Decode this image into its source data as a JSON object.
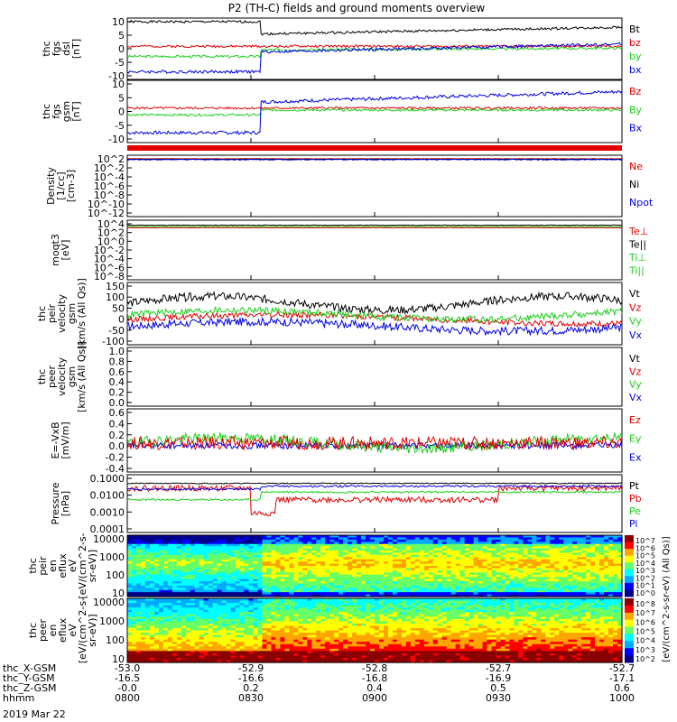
{
  "title": "P2 (TH-C) fields and ground moments overview",
  "date_label": "2019 Mar 22",
  "colors": {
    "black": "#000000",
    "red": "#e00000",
    "green": "#19d019",
    "blue": "#0000e0",
    "axis": "#000000"
  },
  "chart_data": [
    {
      "type": "line",
      "name": "fgs_dsl",
      "ylabel": [
        "thc",
        "fgs",
        "dsl",
        "[nT]"
      ],
      "yticks": [
        "10",
        "5",
        "0",
        "-5",
        "-10"
      ],
      "ylim": [
        -10,
        10
      ],
      "legend": [
        {
          "label": "Bt",
          "color": "black"
        },
        {
          "label": "bz",
          "color": "red"
        },
        {
          "label": "by",
          "color": "green"
        },
        {
          "label": "bx",
          "color": "blue"
        }
      ]
    },
    {
      "type": "line",
      "name": "fgs_gsm",
      "ylabel": [
        "thc",
        "fgs",
        "gsm",
        "[nT]"
      ],
      "yticks": [
        "10",
        "5",
        "0",
        "-5",
        "-10"
      ],
      "ylim": [
        -12,
        10
      ],
      "legend": [
        {
          "label": "Bz",
          "color": "red"
        },
        {
          "label": "By",
          "color": "green"
        },
        {
          "label": "Bx",
          "color": "blue"
        }
      ]
    },
    {
      "type": "line",
      "name": "density",
      "ylabel": [
        "Density",
        "[1/cc]",
        "[cm-3]"
      ],
      "yticks": [
        "10^2",
        "10^-2",
        "10^-4",
        "10^-6",
        "10^-8",
        "10^-10",
        "10^-12"
      ],
      "ylim": [
        -12,
        2
      ],
      "yscale": "log",
      "legend": [
        {
          "label": "Ne",
          "color": "red"
        },
        {
          "label": "Ni",
          "color": "black"
        },
        {
          "label": "Npot",
          "color": "blue"
        }
      ]
    },
    {
      "type": "line",
      "name": "temperature",
      "ylabel": [
        "moqt3",
        "[eV]"
      ],
      "yticks": [
        "10^4",
        "10^2",
        "10^0",
        "10^-2",
        "10^-4",
        "10^-6",
        "10^-8"
      ],
      "ylim": [
        -8,
        4
      ],
      "yscale": "log",
      "legend": [
        {
          "label": "Te⊥",
          "color": "red"
        },
        {
          "label": "Te||",
          "color": "black"
        },
        {
          "label": "Ti⊥",
          "color": "green"
        },
        {
          "label": "Ti||",
          "color": "green"
        }
      ]
    },
    {
      "type": "line",
      "name": "peir_velocity",
      "ylabel": [
        "thc",
        "peir",
        "velocity",
        "gsm",
        "[km/s (All Qs)]"
      ],
      "yticks": [
        "150",
        "100",
        "50",
        "0",
        "-50",
        "-100"
      ],
      "ylim": [
        -120,
        150
      ],
      "legend": [
        {
          "label": "Vt",
          "color": "black"
        },
        {
          "label": "Vz",
          "color": "red"
        },
        {
          "label": "Vy",
          "color": "green"
        },
        {
          "label": "Vx",
          "color": "blue"
        }
      ]
    },
    {
      "type": "line",
      "name": "peer_velocity",
      "ylabel": [
        "thc",
        "peer",
        "velocity",
        "gsm",
        "[km/s (All Qs)]"
      ],
      "yticks": [
        "1.0",
        "0.8",
        "0.6",
        "0.4",
        "0.2",
        "0.0"
      ],
      "ylim": [
        0,
        1
      ],
      "legend": [
        {
          "label": "Vt",
          "color": "black"
        },
        {
          "label": "Vz",
          "color": "red"
        },
        {
          "label": "Vy",
          "color": "green"
        },
        {
          "label": "Vx",
          "color": "blue"
        }
      ]
    },
    {
      "type": "line",
      "name": "efield",
      "ylabel": [
        "E=-VxB",
        "[mV/m]"
      ],
      "yticks": [
        "0.6",
        "0.4",
        "0.2",
        "0.0",
        "-0.2",
        "-0.4"
      ],
      "ylim": [
        -0.5,
        0.7
      ],
      "legend": [
        {
          "label": "Ez",
          "color": "red"
        },
        {
          "label": "Ey",
          "color": "green"
        },
        {
          "label": "Ex",
          "color": "blue"
        }
      ]
    },
    {
      "type": "line",
      "name": "pressure",
      "ylabel": [
        "Pressure",
        "[nPa]"
      ],
      "yticks": [
        "0.1000",
        "0.0100",
        "0.0010",
        "0.0001"
      ],
      "ylim": [
        -4,
        -1
      ],
      "yscale": "log",
      "legend": [
        {
          "label": "Pt",
          "color": "black"
        },
        {
          "label": "Pb",
          "color": "red"
        },
        {
          "label": "Pe",
          "color": "green"
        },
        {
          "label": "Pi",
          "color": "blue"
        }
      ]
    },
    {
      "type": "heatmap",
      "name": "peir_spectrogram",
      "ylabel": [
        "thc",
        "peir",
        "en",
        "eflux",
        "eV",
        "[eV/(cm^2-s-",
        "sr-eV)]"
      ],
      "yticks": [
        "10000",
        "1000",
        "100",
        "10"
      ],
      "ylim": [
        1,
        4.1
      ],
      "yscale": "log",
      "colorbar": {
        "label": "[eV/(cm^2-s-sr-eV) (All Qs)]",
        "ticks": [
          "10^7",
          "10^6",
          "10^5",
          "10^4",
          "10^3",
          "10^2",
          "10^1",
          "10^0"
        ]
      }
    },
    {
      "type": "heatmap",
      "name": "peer_spectrogram",
      "ylabel": [
        "thc",
        "peer",
        "en",
        "eflux",
        "eV",
        "[eV/(cm^2-s-",
        "sr-eV)]"
      ],
      "yticks": [
        "10000",
        "1000",
        "100",
        "10"
      ],
      "ylim": [
        0.8,
        4.3
      ],
      "yscale": "log",
      "colorbar": {
        "label": "[eV/(cm^2-s-sr-eV)]",
        "ticks": [
          "10^8",
          "10^7",
          "10^6",
          "10^5",
          "10^4",
          "10^3",
          "10^2"
        ]
      }
    }
  ],
  "xaxis": {
    "rows": [
      {
        "label": "thc_X-GSM",
        "values": [
          "-53.0",
          "-52.9",
          "-52.8",
          "-52.7",
          "-52.7"
        ]
      },
      {
        "label": "thc_Y-GSM",
        "values": [
          "-16.5",
          "-16.6",
          "-16.8",
          "-16.9",
          "-17.1"
        ]
      },
      {
        "label": "thc_Z-GSM",
        "values": [
          "-0.0",
          "0.2",
          "0.4",
          "0.5",
          "0.6"
        ]
      },
      {
        "label": "hhmm",
        "values": [
          "0800",
          "0830",
          "0900",
          "0930",
          "1000"
        ]
      }
    ]
  },
  "bars": {
    "red_bar_color": "red"
  }
}
